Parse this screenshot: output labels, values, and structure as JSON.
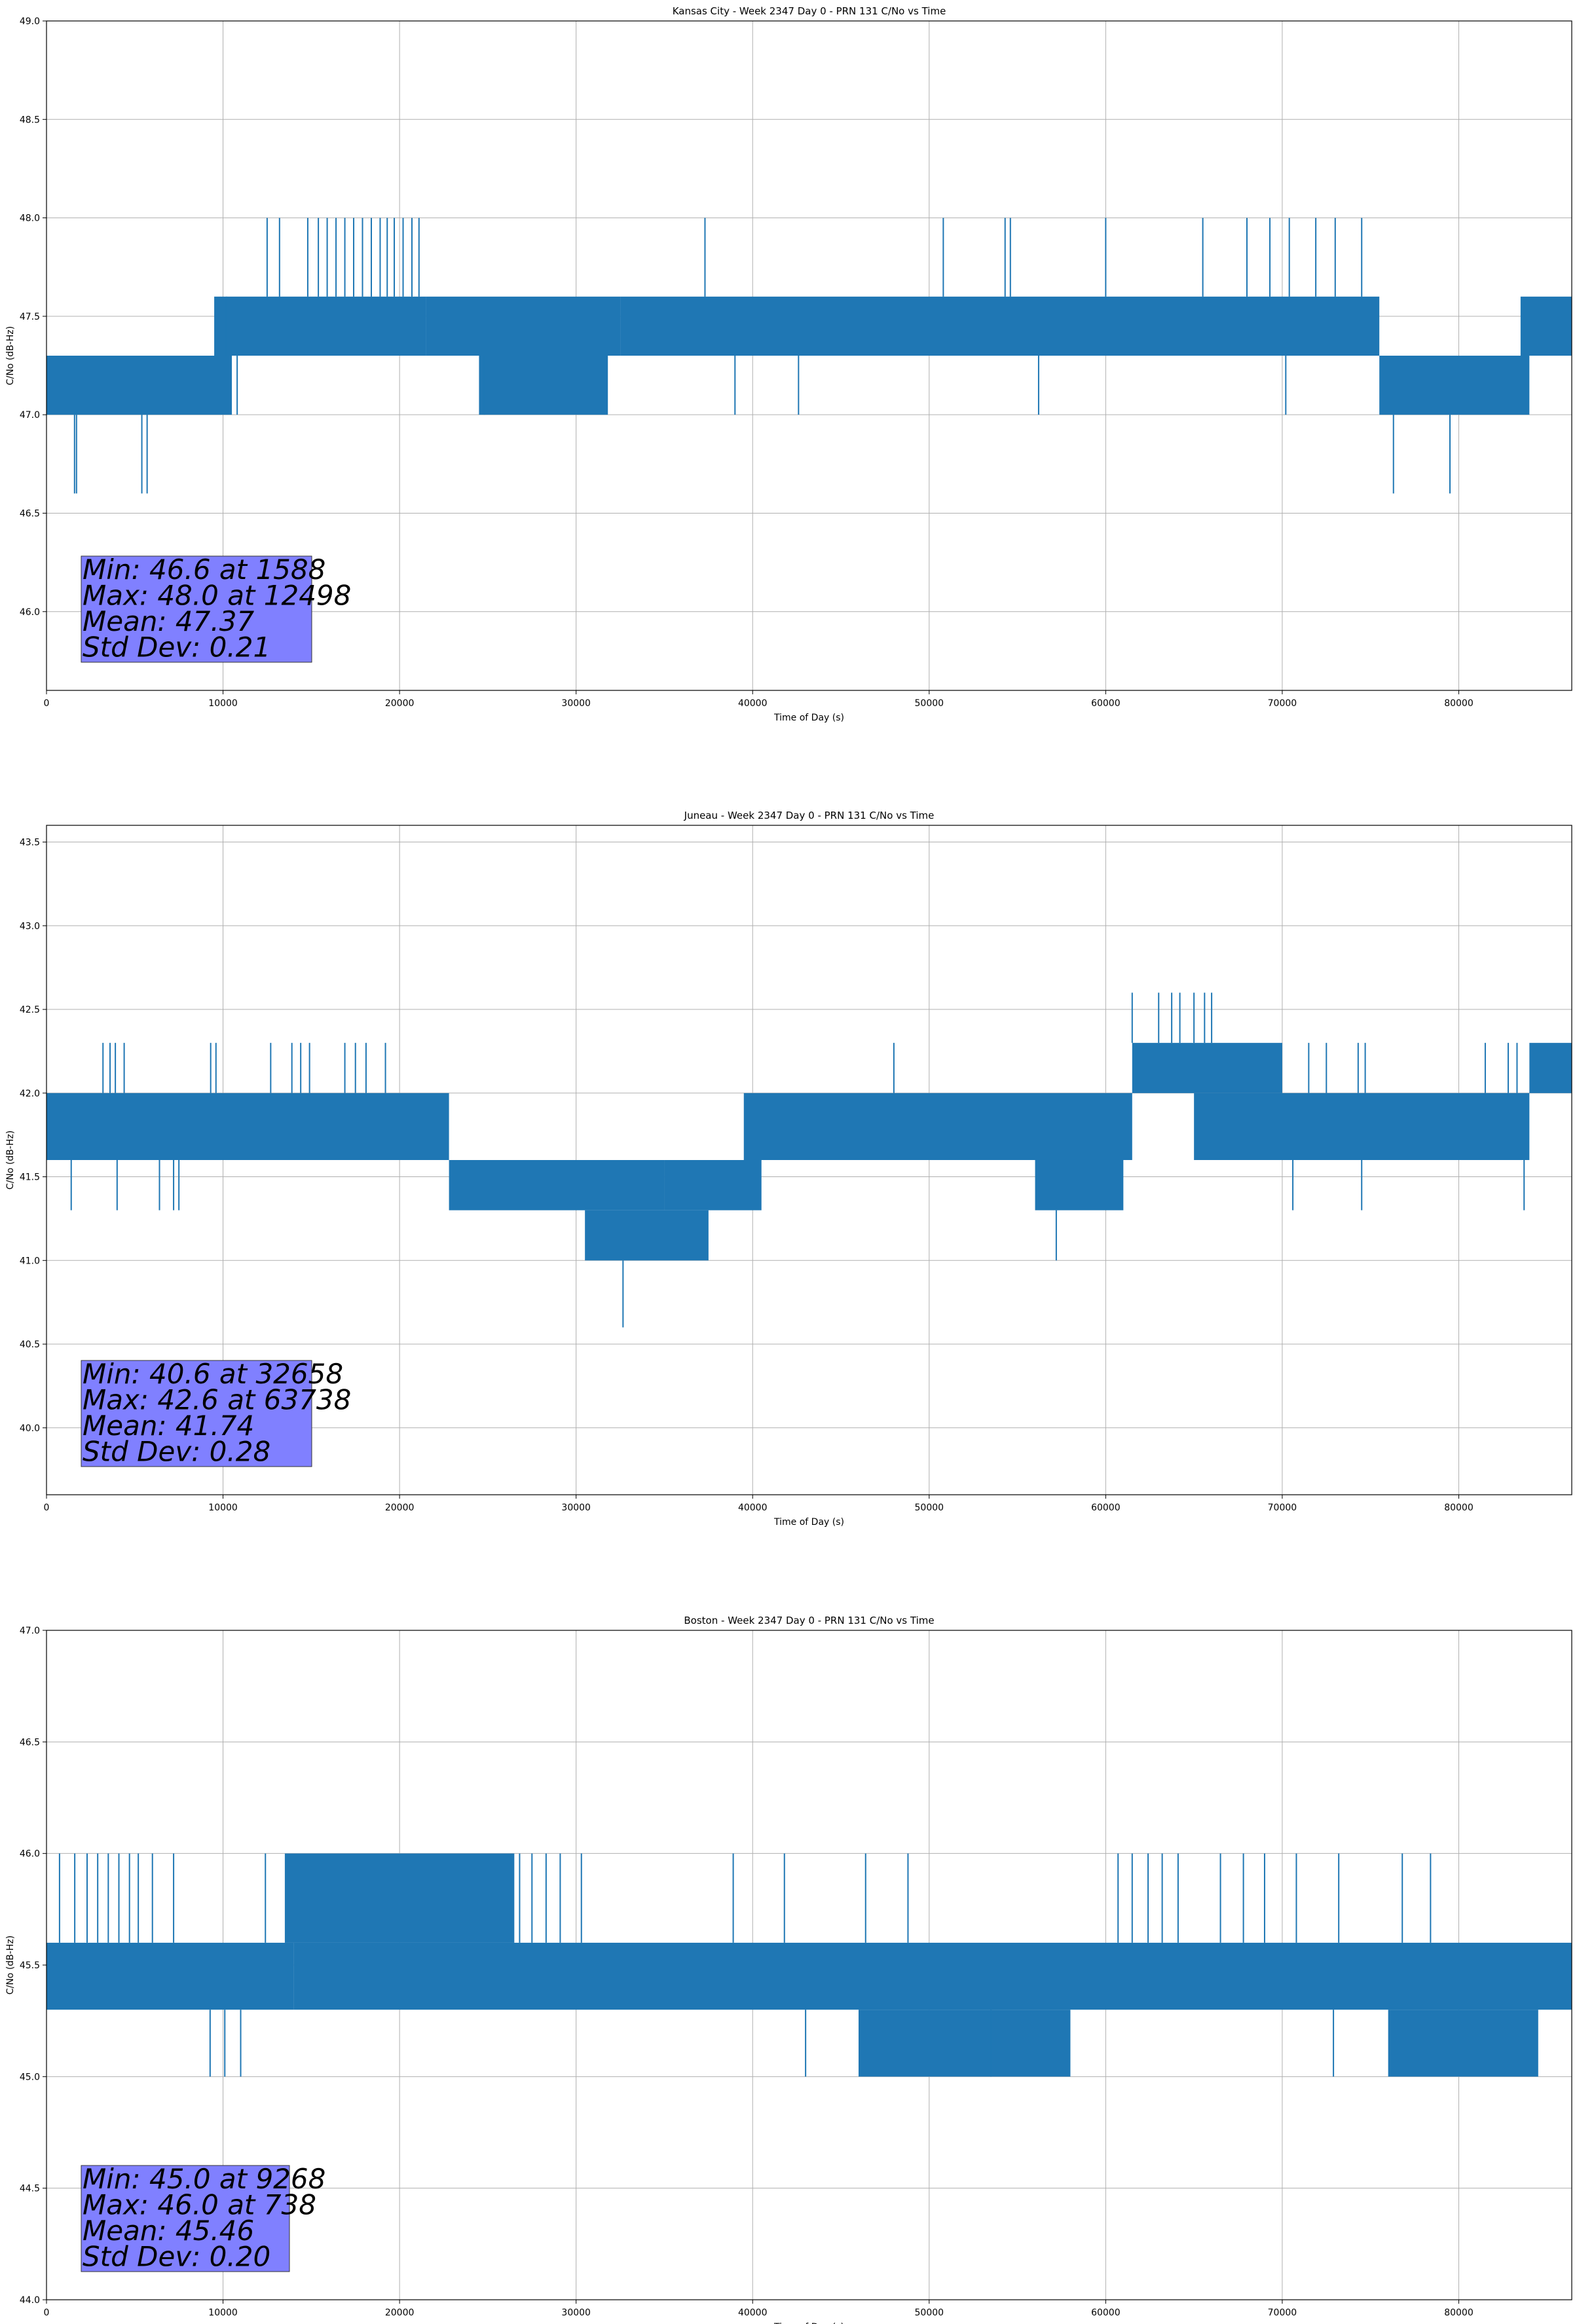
{
  "chart_data": [
    {
      "type": "line",
      "title": "Kansas City - Week 2347 Day 0 - PRN 131 C/No vs Time",
      "xlabel": "Time of Day (s)",
      "ylabel": "C/No (dB-Hz)",
      "xlim": [
        0,
        86400
      ],
      "ylim": [
        45.6,
        49.0
      ],
      "xticks": [
        0,
        10000,
        20000,
        30000,
        40000,
        50000,
        60000,
        70000,
        80000
      ],
      "yticks": [
        46.0,
        46.5,
        47.0,
        47.5,
        48.0,
        48.5,
        49.0
      ],
      "ytick_labels": [
        "46.0",
        "46.5",
        "47.0",
        "47.5",
        "48.0",
        "48.5",
        "49.0"
      ],
      "grid": true,
      "series_color": "#1f77b4",
      "bands": [
        {
          "x": [
            0,
            10500
          ],
          "y": [
            47.0,
            47.3
          ]
        },
        {
          "x": [
            9500,
            21500
          ],
          "y": [
            47.3,
            47.6
          ]
        },
        {
          "x": [
            21500,
            32500
          ],
          "y": [
            47.3,
            47.6
          ]
        },
        {
          "x": [
            24500,
            31800
          ],
          "y": [
            47.0,
            47.3
          ]
        },
        {
          "x": [
            32500,
            75500
          ],
          "y": [
            47.3,
            47.6
          ]
        },
        {
          "x": [
            75500,
            84000
          ],
          "y": [
            47.0,
            47.3
          ]
        },
        {
          "x": [
            83500,
            86400
          ],
          "y": [
            47.3,
            47.6
          ]
        }
      ],
      "spikes": [
        {
          "x": 1588,
          "y": [
            46.6,
            47.0
          ]
        },
        {
          "x": 1700,
          "y": [
            46.6,
            47.0
          ]
        },
        {
          "x": 5400,
          "y": [
            46.6,
            47.0
          ]
        },
        {
          "x": 5700,
          "y": [
            46.6,
            47.0
          ]
        },
        {
          "x": 10200,
          "y": [
            47.3,
            47.6
          ]
        },
        {
          "x": 10800,
          "y": [
            47.0,
            47.3
          ]
        },
        {
          "x": 12498,
          "y": [
            47.6,
            48.0
          ]
        },
        {
          "x": 13200,
          "y": [
            47.6,
            48.0
          ]
        },
        {
          "x": 14800,
          "y": [
            47.6,
            48.0
          ]
        },
        {
          "x": 15400,
          "y": [
            47.6,
            48.0
          ]
        },
        {
          "x": 15900,
          "y": [
            47.6,
            48.0
          ]
        },
        {
          "x": 16400,
          "y": [
            47.6,
            48.0
          ]
        },
        {
          "x": 16900,
          "y": [
            47.6,
            48.0
          ]
        },
        {
          "x": 17400,
          "y": [
            47.6,
            48.0
          ]
        },
        {
          "x": 17900,
          "y": [
            47.6,
            48.0
          ]
        },
        {
          "x": 18400,
          "y": [
            47.6,
            48.0
          ]
        },
        {
          "x": 18900,
          "y": [
            47.6,
            48.0
          ]
        },
        {
          "x": 19300,
          "y": [
            47.6,
            48.0
          ]
        },
        {
          "x": 19700,
          "y": [
            47.6,
            48.0
          ]
        },
        {
          "x": 20200,
          "y": [
            47.6,
            48.0
          ]
        },
        {
          "x": 20700,
          "y": [
            47.6,
            48.0
          ]
        },
        {
          "x": 21100,
          "y": [
            47.6,
            48.0
          ]
        },
        {
          "x": 37300,
          "y": [
            47.6,
            48.0
          ]
        },
        {
          "x": 50800,
          "y": [
            47.6,
            48.0
          ]
        },
        {
          "x": 54300,
          "y": [
            47.6,
            48.0
          ]
        },
        {
          "x": 54600,
          "y": [
            47.6,
            48.0
          ]
        },
        {
          "x": 60000,
          "y": [
            47.6,
            48.0
          ]
        },
        {
          "x": 65500,
          "y": [
            47.6,
            48.0
          ]
        },
        {
          "x": 68000,
          "y": [
            47.6,
            48.0
          ]
        },
        {
          "x": 69300,
          "y": [
            47.6,
            48.0
          ]
        },
        {
          "x": 70400,
          "y": [
            47.6,
            48.0
          ]
        },
        {
          "x": 71900,
          "y": [
            47.6,
            48.0
          ]
        },
        {
          "x": 73000,
          "y": [
            47.6,
            48.0
          ]
        },
        {
          "x": 74500,
          "y": [
            47.6,
            48.0
          ]
        },
        {
          "x": 76300,
          "y": [
            46.6,
            47.0
          ]
        },
        {
          "x": 79500,
          "y": [
            46.6,
            47.0
          ]
        },
        {
          "x": 24800,
          "y": [
            47.0,
            47.3
          ]
        },
        {
          "x": 39000,
          "y": [
            47.0,
            47.3
          ]
        },
        {
          "x": 42600,
          "y": [
            47.0,
            47.3
          ]
        },
        {
          "x": 56200,
          "y": [
            47.0,
            47.3
          ]
        },
        {
          "x": 70200,
          "y": [
            47.0,
            47.3
          ]
        }
      ],
      "stats": [
        "Min: 46.6 at 1588",
        "Max: 48.0 at 12498",
        "Mean: 47.37",
        "Std Dev: 0.21"
      ]
    },
    {
      "type": "line",
      "title": "Juneau - Week 2347 Day 0 - PRN 131 C/No vs Time",
      "xlabel": "Time of Day (s)",
      "ylabel": "C/No (dB-Hz)",
      "xlim": [
        0,
        86400
      ],
      "ylim": [
        39.6,
        43.6
      ],
      "xticks": [
        0,
        10000,
        20000,
        30000,
        40000,
        50000,
        60000,
        70000,
        80000
      ],
      "yticks": [
        40.0,
        40.5,
        41.0,
        41.5,
        42.0,
        42.5,
        43.0,
        43.5
      ],
      "ytick_labels": [
        "40.0",
        "40.5",
        "41.0",
        "41.5",
        "42.0",
        "42.5",
        "43.0",
        "43.5"
      ],
      "grid": true,
      "series_color": "#1f77b4",
      "bands": [
        {
          "x": [
            0,
            22800
          ],
          "y": [
            41.6,
            42.0
          ]
        },
        {
          "x": [
            22800,
            35000
          ],
          "y": [
            41.3,
            41.6
          ]
        },
        {
          "x": [
            30500,
            37500
          ],
          "y": [
            41.0,
            41.3
          ]
        },
        {
          "x": [
            35000,
            40500
          ],
          "y": [
            41.3,
            41.6
          ]
        },
        {
          "x": [
            39500,
            61500
          ],
          "y": [
            41.6,
            42.0
          ]
        },
        {
          "x": [
            56000,
            61000
          ],
          "y": [
            41.3,
            41.6
          ]
        },
        {
          "x": [
            61500,
            70000
          ],
          "y": [
            42.0,
            42.3
          ]
        },
        {
          "x": [
            65000,
            84000
          ],
          "y": [
            41.6,
            42.0
          ]
        },
        {
          "x": [
            84000,
            86400
          ],
          "y": [
            42.0,
            42.3
          ]
        }
      ],
      "spikes": [
        {
          "x": 3200,
          "y": [
            42.0,
            42.3
          ]
        },
        {
          "x": 3600,
          "y": [
            42.0,
            42.3
          ]
        },
        {
          "x": 3900,
          "y": [
            42.0,
            42.3
          ]
        },
        {
          "x": 4400,
          "y": [
            42.0,
            42.3
          ]
        },
        {
          "x": 9300,
          "y": [
            42.0,
            42.3
          ]
        },
        {
          "x": 9600,
          "y": [
            42.0,
            42.3
          ]
        },
        {
          "x": 12700,
          "y": [
            42.0,
            42.3
          ]
        },
        {
          "x": 13900,
          "y": [
            42.0,
            42.3
          ]
        },
        {
          "x": 14400,
          "y": [
            42.0,
            42.3
          ]
        },
        {
          "x": 14900,
          "y": [
            42.0,
            42.3
          ]
        },
        {
          "x": 16900,
          "y": [
            42.0,
            42.3
          ]
        },
        {
          "x": 17500,
          "y": [
            42.0,
            42.3
          ]
        },
        {
          "x": 18100,
          "y": [
            42.0,
            42.3
          ]
        },
        {
          "x": 19200,
          "y": [
            42.0,
            42.3
          ]
        },
        {
          "x": 1400,
          "y": [
            41.3,
            41.6
          ]
        },
        {
          "x": 4000,
          "y": [
            41.3,
            41.6
          ]
        },
        {
          "x": 6400,
          "y": [
            41.3,
            41.6
          ]
        },
        {
          "x": 7200,
          "y": [
            41.3,
            41.6
          ]
        },
        {
          "x": 7500,
          "y": [
            41.3,
            41.6
          ]
        },
        {
          "x": 32658,
          "y": [
            40.6,
            41.0
          ]
        },
        {
          "x": 48000,
          "y": [
            42.0,
            42.3
          ]
        },
        {
          "x": 57200,
          "y": [
            41.0,
            41.3
          ]
        },
        {
          "x": 61500,
          "y": [
            42.3,
            42.6
          ]
        },
        {
          "x": 63000,
          "y": [
            42.3,
            42.6
          ]
        },
        {
          "x": 63738,
          "y": [
            42.3,
            42.6
          ]
        },
        {
          "x": 64200,
          "y": [
            42.3,
            42.6
          ]
        },
        {
          "x": 65000,
          "y": [
            42.3,
            42.6
          ]
        },
        {
          "x": 65600,
          "y": [
            42.3,
            42.6
          ]
        },
        {
          "x": 66000,
          "y": [
            42.3,
            42.6
          ]
        },
        {
          "x": 71500,
          "y": [
            42.0,
            42.3
          ]
        },
        {
          "x": 72500,
          "y": [
            42.0,
            42.3
          ]
        },
        {
          "x": 74300,
          "y": [
            42.0,
            42.3
          ]
        },
        {
          "x": 74700,
          "y": [
            42.0,
            42.3
          ]
        },
        {
          "x": 81500,
          "y": [
            42.0,
            42.3
          ]
        },
        {
          "x": 82800,
          "y": [
            42.0,
            42.3
          ]
        },
        {
          "x": 83300,
          "y": [
            42.0,
            42.3
          ]
        },
        {
          "x": 70600,
          "y": [
            41.3,
            41.6
          ]
        },
        {
          "x": 74500,
          "y": [
            41.3,
            41.6
          ]
        },
        {
          "x": 83700,
          "y": [
            41.3,
            41.6
          ]
        }
      ],
      "stats": [
        "Min: 40.6 at 32658",
        "Max: 42.6 at 63738",
        "Mean: 41.74",
        "Std Dev: 0.28"
      ]
    },
    {
      "type": "line",
      "title": "Boston - Week 2347 Day 0 - PRN 131 C/No vs Time",
      "xlabel": "Time of Day (s)",
      "ylabel": "C/No (dB-Hz)",
      "xlim": [
        0,
        86400
      ],
      "ylim": [
        44.0,
        47.0
      ],
      "xticks": [
        0,
        10000,
        20000,
        30000,
        40000,
        50000,
        60000,
        70000,
        80000
      ],
      "yticks": [
        44.0,
        44.5,
        45.0,
        45.5,
        46.0,
        46.5,
        47.0
      ],
      "ytick_labels": [
        "44.0",
        "44.5",
        "45.0",
        "45.5",
        "46.0",
        "46.5",
        "47.0"
      ],
      "grid": true,
      "series_color": "#1f77b4",
      "bands": [
        {
          "x": [
            0,
            14000
          ],
          "y": [
            45.3,
            45.6
          ]
        },
        {
          "x": [
            13500,
            26500
          ],
          "y": [
            45.6,
            46.0
          ]
        },
        {
          "x": [
            14000,
            86400
          ],
          "y": [
            45.3,
            45.6
          ]
        },
        {
          "x": [
            46000,
            58000
          ],
          "y": [
            45.0,
            45.3
          ]
        },
        {
          "x": [
            76000,
            84500
          ],
          "y": [
            45.0,
            45.3
          ]
        }
      ],
      "spikes": [
        {
          "x": 738,
          "y": [
            45.6,
            46.0
          ]
        },
        {
          "x": 1600,
          "y": [
            45.6,
            46.0
          ]
        },
        {
          "x": 2300,
          "y": [
            45.6,
            46.0
          ]
        },
        {
          "x": 2900,
          "y": [
            45.6,
            46.0
          ]
        },
        {
          "x": 3500,
          "y": [
            45.6,
            46.0
          ]
        },
        {
          "x": 4100,
          "y": [
            45.6,
            46.0
          ]
        },
        {
          "x": 4700,
          "y": [
            45.6,
            46.0
          ]
        },
        {
          "x": 5200,
          "y": [
            45.6,
            46.0
          ]
        },
        {
          "x": 6000,
          "y": [
            45.6,
            46.0
          ]
        },
        {
          "x": 7200,
          "y": [
            45.6,
            46.0
          ]
        },
        {
          "x": 9268,
          "y": [
            45.0,
            45.3
          ]
        },
        {
          "x": 10100,
          "y": [
            45.0,
            45.3
          ]
        },
        {
          "x": 11000,
          "y": [
            45.0,
            45.3
          ]
        },
        {
          "x": 12400,
          "y": [
            45.6,
            46.0
          ]
        },
        {
          "x": 26800,
          "y": [
            45.6,
            46.0
          ]
        },
        {
          "x": 27500,
          "y": [
            45.6,
            46.0
          ]
        },
        {
          "x": 28300,
          "y": [
            45.6,
            46.0
          ]
        },
        {
          "x": 29100,
          "y": [
            45.6,
            46.0
          ]
        },
        {
          "x": 30300,
          "y": [
            45.6,
            46.0
          ]
        },
        {
          "x": 38900,
          "y": [
            45.6,
            46.0
          ]
        },
        {
          "x": 41800,
          "y": [
            45.6,
            46.0
          ]
        },
        {
          "x": 43000,
          "y": [
            45.0,
            45.3
          ]
        },
        {
          "x": 46400,
          "y": [
            45.6,
            46.0
          ]
        },
        {
          "x": 48800,
          "y": [
            45.6,
            46.0
          ]
        },
        {
          "x": 53500,
          "y": [
            45.0,
            45.3
          ]
        },
        {
          "x": 60700,
          "y": [
            45.6,
            46.0
          ]
        },
        {
          "x": 61500,
          "y": [
            45.6,
            46.0
          ]
        },
        {
          "x": 62400,
          "y": [
            45.6,
            46.0
          ]
        },
        {
          "x": 63200,
          "y": [
            45.6,
            46.0
          ]
        },
        {
          "x": 64100,
          "y": [
            45.6,
            46.0
          ]
        },
        {
          "x": 66500,
          "y": [
            45.6,
            46.0
          ]
        },
        {
          "x": 67800,
          "y": [
            45.6,
            46.0
          ]
        },
        {
          "x": 69000,
          "y": [
            45.6,
            46.0
          ]
        },
        {
          "x": 70800,
          "y": [
            45.6,
            46.0
          ]
        },
        {
          "x": 72900,
          "y": [
            45.0,
            45.3
          ]
        },
        {
          "x": 73200,
          "y": [
            45.6,
            46.0
          ]
        },
        {
          "x": 76800,
          "y": [
            45.6,
            46.0
          ]
        },
        {
          "x": 78400,
          "y": [
            45.6,
            46.0
          ]
        }
      ],
      "stats": [
        "Min: 45.0 at 9268",
        "Max: 46.0 at 738",
        "Mean: 45.46",
        "Std Dev: 0.20"
      ]
    }
  ]
}
